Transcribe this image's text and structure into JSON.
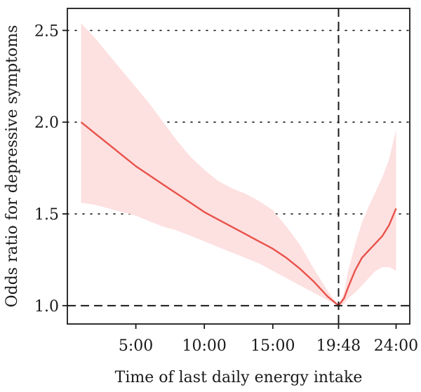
{
  "chart_data": {
    "type": "line",
    "xlabel": "Time of last daily energy intake",
    "ylabel": "Odds ratio for depressive symptoms",
    "xlim": [
      0,
      25
    ],
    "ylim": [
      0.9,
      2.62
    ],
    "x_ticks": [
      {
        "value": 5,
        "label": "5:00"
      },
      {
        "value": 10,
        "label": "10:00"
      },
      {
        "value": 15,
        "label": "15:00"
      },
      {
        "value": 19.8,
        "label": "19:48"
      },
      {
        "value": 24,
        "label": "24:00"
      }
    ],
    "y_ticks": [
      {
        "value": 1.0,
        "label": "1.0"
      },
      {
        "value": 1.5,
        "label": "1.5"
      },
      {
        "value": 2.0,
        "label": "2.0"
      },
      {
        "value": 2.5,
        "label": "2.5"
      }
    ],
    "grid": "horizontal dotted",
    "reference_lines": {
      "x": 19.8,
      "y": 1.0
    },
    "colors": {
      "line": "#e8524a",
      "band": "#fde0e0"
    },
    "series": [
      {
        "x": [
          1,
          2,
          3,
          4,
          5,
          6,
          7,
          8,
          9,
          10,
          11,
          12,
          13,
          14,
          15,
          16,
          17,
          18,
          19,
          19.8,
          20.2,
          20.5,
          21,
          21.5,
          22,
          22.5,
          23,
          23.5,
          24
        ],
        "y": [
          2.0,
          1.94,
          1.88,
          1.82,
          1.76,
          1.71,
          1.66,
          1.61,
          1.56,
          1.51,
          1.47,
          1.43,
          1.39,
          1.35,
          1.31,
          1.26,
          1.2,
          1.13,
          1.05,
          1.0,
          1.04,
          1.1,
          1.19,
          1.26,
          1.3,
          1.34,
          1.38,
          1.44,
          1.53
        ],
        "lower": [
          1.56,
          1.55,
          1.53,
          1.51,
          1.49,
          1.46,
          1.43,
          1.41,
          1.38,
          1.35,
          1.32,
          1.29,
          1.26,
          1.23,
          1.19,
          1.15,
          1.11,
          1.07,
          1.03,
          1.0,
          1.01,
          1.04,
          1.07,
          1.11,
          1.15,
          1.19,
          1.21,
          1.21,
          1.19
        ],
        "upper": [
          2.54,
          2.46,
          2.37,
          2.28,
          2.19,
          2.1,
          2.0,
          1.9,
          1.81,
          1.74,
          1.68,
          1.64,
          1.61,
          1.57,
          1.52,
          1.43,
          1.33,
          1.2,
          1.08,
          1.0,
          1.07,
          1.19,
          1.33,
          1.45,
          1.54,
          1.62,
          1.7,
          1.8,
          1.96
        ]
      }
    ]
  }
}
